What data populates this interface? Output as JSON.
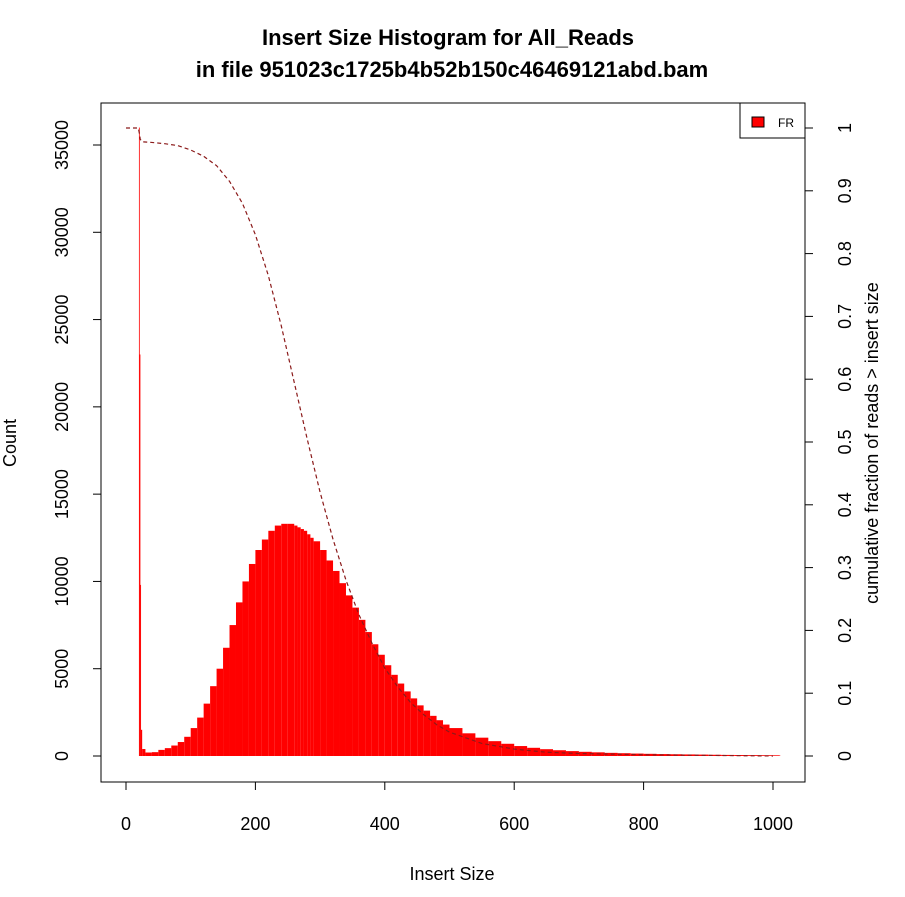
{
  "chart_data": {
    "type": "bar",
    "title": "Insert Size Histogram for All_Reads",
    "subtitle": "in file 951023c1725b4b52b150c46469121abd.bam",
    "xlabel": "Insert Size",
    "ylabel": "Count",
    "y2label": "cumulative fraction of reads > insert size",
    "xlim": [
      0,
      1000
    ],
    "ylim": [
      0,
      35000
    ],
    "y2lim": [
      0,
      1
    ],
    "x_ticks": [
      0,
      200,
      400,
      600,
      800,
      1000
    ],
    "y_ticks": [
      0,
      5000,
      10000,
      15000,
      20000,
      25000,
      30000,
      35000
    ],
    "y2_ticks": [
      0,
      0.1,
      0.2,
      0.3,
      0.4,
      0.5,
      0.6,
      0.7,
      0.8,
      0.9,
      1
    ],
    "legend": {
      "position": "top-right",
      "entries": [
        "FR"
      ]
    },
    "colors": {
      "histogram": "#ff0000",
      "cumulative": "#8b1a1a"
    },
    "grid": false,
    "series": [
      {
        "name": "FR",
        "kind": "histogram",
        "x": [
          20,
          21,
          22,
          23,
          25,
          30,
          40,
          50,
          60,
          70,
          80,
          90,
          100,
          110,
          120,
          130,
          140,
          150,
          160,
          170,
          180,
          190,
          200,
          210,
          220,
          230,
          240,
          250,
          260,
          265,
          270,
          275,
          280,
          285,
          290,
          300,
          310,
          320,
          330,
          340,
          350,
          360,
          370,
          380,
          390,
          400,
          410,
          420,
          430,
          440,
          450,
          460,
          470,
          480,
          490,
          500,
          520,
          540,
          560,
          580,
          600,
          620,
          640,
          660,
          680,
          700,
          720,
          740,
          760,
          780,
          800,
          820,
          840,
          860,
          880,
          900,
          920,
          940,
          960,
          980,
          1000,
          1010
        ],
        "values": [
          36000,
          23000,
          9800,
          1500,
          400,
          200,
          220,
          350,
          450,
          600,
          800,
          1100,
          1600,
          2200,
          3000,
          4000,
          5000,
          6200,
          7500,
          8800,
          10000,
          11000,
          11800,
          12400,
          12900,
          13200,
          13300,
          13300,
          13200,
          13100,
          13000,
          12900,
          12700,
          12500,
          12300,
          11800,
          11200,
          10600,
          9900,
          9200,
          8500,
          7800,
          7100,
          6400,
          5800,
          5200,
          4650,
          4150,
          3700,
          3300,
          2900,
          2600,
          2300,
          2050,
          1800,
          1600,
          1300,
          1050,
          850,
          700,
          570,
          470,
          390,
          330,
          280,
          240,
          210,
          180,
          160,
          140,
          125,
          110,
          100,
          90,
          80,
          70,
          62,
          55,
          50,
          45,
          40,
          30
        ]
      },
      {
        "name": "cumulative fraction of reads > insert size",
        "kind": "line",
        "axis": "right",
        "x": [
          0,
          10,
          19,
          20,
          21,
          22,
          25,
          40,
          60,
          80,
          100,
          120,
          140,
          160,
          180,
          200,
          220,
          240,
          260,
          280,
          300,
          320,
          340,
          360,
          380,
          400,
          420,
          440,
          460,
          480,
          500,
          550,
          600,
          650,
          700,
          750,
          800,
          850,
          900,
          950,
          1000
        ],
        "values": [
          1.0,
          1.0,
          1.0,
          0.995,
          0.99,
          0.982,
          0.978,
          0.977,
          0.975,
          0.972,
          0.965,
          0.955,
          0.94,
          0.915,
          0.88,
          0.83,
          0.765,
          0.685,
          0.595,
          0.505,
          0.42,
          0.345,
          0.28,
          0.225,
          0.18,
          0.14,
          0.11,
          0.085,
          0.066,
          0.05,
          0.038,
          0.02,
          0.011,
          0.006,
          0.004,
          0.003,
          0.002,
          0.0015,
          0.001,
          0.0005,
          0.0
        ]
      }
    ]
  }
}
